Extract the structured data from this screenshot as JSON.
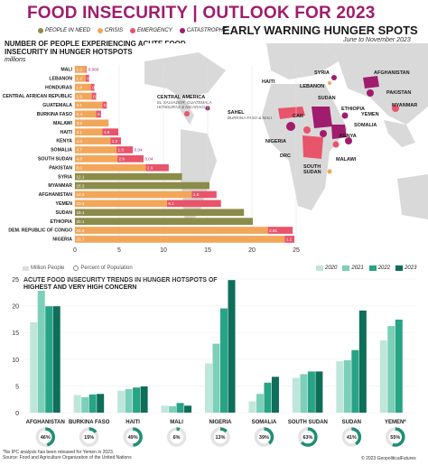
{
  "header": {
    "title": "FOOD INSECURITY | OUTLOOK FOR 2023",
    "subtitle": "EARLY WARNING HUNGER SPOTS",
    "dates": "June to November 2023"
  },
  "phase_legend": [
    {
      "label": "PEOPLE IN NEED",
      "color": "#8c8c4a"
    },
    {
      "label": "CRISIS",
      "color": "#f2a65a"
    },
    {
      "label": "EMERGENCY",
      "color": "#e8546a"
    },
    {
      "label": "CATASTROPHE",
      "color": "#a01c6e"
    }
  ],
  "map": {
    "labels": [
      {
        "name": "SYRIA",
        "sub": ""
      },
      {
        "name": "AFGHANISTAN",
        "sub": ""
      },
      {
        "name": "LEBANON",
        "sub": ""
      },
      {
        "name": "PAKISTAN",
        "sub": ""
      },
      {
        "name": "SUDAN",
        "sub": ""
      },
      {
        "name": "MYANMAR",
        "sub": ""
      },
      {
        "name": "HAITI",
        "sub": ""
      },
      {
        "name": "ETHIOPIA",
        "sub": ""
      },
      {
        "name": "YEMEN",
        "sub": ""
      },
      {
        "name": "CENTRAL AMERICA",
        "sub": "EL SALVADOR, GUATEMALA HONDURAS & NICARAGUA"
      },
      {
        "name": "SAHEL",
        "sub": "BURKINA FASO & MALI"
      },
      {
        "name": "CAR",
        "sub": ""
      },
      {
        "name": "KENYA",
        "sub": ""
      },
      {
        "name": "SOMALIA",
        "sub": ""
      },
      {
        "name": "NIGERIA",
        "sub": ""
      },
      {
        "name": "DRC",
        "sub": ""
      },
      {
        "name": "MALAWI",
        "sub": ""
      },
      {
        "name": "SOUTH SUDAN",
        "sub": ""
      }
    ]
  },
  "bar_section": {
    "title": "NUMBER OF PEOPLE EXPERIENCING ACUTE FOOD INSECURITY IN HUNGER HOTSPOTS",
    "unit": "millions"
  },
  "bottom_legend": {
    "million_people": "Million People",
    "percent_population": "Percent of Population"
  },
  "trend_section": {
    "title": "ACUTE FOOD INSECURITY TRENDS IN HUNGER HOTSPOTS OF HIGHEST AND VERY HIGH CONCERN"
  },
  "footer": {
    "note": "*No IPC analysis has been released for Yemen in 2023.",
    "source": "Source: Food and Agriculture Organization of the United Nations",
    "copyright": "© 2023 GeopoliticalFutures"
  },
  "chart_data": [
    {
      "type": "bar",
      "orientation": "horizontal",
      "stacked": true,
      "title": "NUMBER OF PEOPLE EXPERIENCING ACUTE FOOD INSECURITY IN HUNGER HOTSPOTS",
      "unit": "millions",
      "xlim": [
        0,
        25
      ],
      "xticks": [
        "0",
        "5",
        "10",
        "15",
        "20",
        "25"
      ],
      "categories": [
        "MALI",
        "LEBANON",
        "HONDURAS",
        "CENTRAL AFRICAN REPUBLIC",
        "GUATEMALA",
        "BURKINA FASO",
        "MALAWI",
        "HAITI",
        "KENYA",
        "SOMALIA",
        "SOUTH SUDAN",
        "PAKISTAN",
        "SYRIA",
        "MYANMAR",
        "AFGHANISTAN",
        "YEMEN",
        "SUDAN",
        "ETHIOPIA",
        "DEM. REPUBLIC OF CONGO",
        "NIGERIA"
      ],
      "series": [
        {
          "name": "PEOPLE IN NEED",
          "color": "#8c8c4a",
          "values": [
            0,
            0,
            0,
            0,
            0,
            0,
            0,
            0,
            0,
            0,
            0,
            0,
            12.1,
            15.2,
            0,
            0,
            19.1,
            20.1,
            0,
            0
          ],
          "labels": [
            "",
            "",
            "",
            "",
            "",
            "",
            "",
            "",
            "",
            "",
            "",
            "",
            "12.1",
            "15.2",
            "",
            "",
            "19.1",
            "20.1",
            "",
            ""
          ]
        },
        {
          "name": "CRISIS",
          "color": "#f2a65a",
          "values": [
            1.2,
            1.2,
            1.8,
            1.9,
            3.1,
            2.4,
            3.8,
            3.1,
            4.0,
            4.7,
            4.8,
            8.0,
            0,
            0,
            13.2,
            10.4,
            0,
            0,
            21.8,
            23.7
          ],
          "labels": [
            "1.2",
            "1.2",
            "1.8",
            "1.9",
            "3.1",
            "2.4",
            "3.8",
            "3.1",
            "4.0",
            "4.7",
            "4.8",
            "8.0",
            "",
            "",
            "13.2",
            "10.4",
            "",
            "",
            "21.8",
            "23.7"
          ]
        },
        {
          "name": "EMERGENCY",
          "color": "#e8546a",
          "values": [
            0.1,
            0.4,
            0.4,
            0.5,
            0.5,
            0.5,
            0,
            1.8,
            1.2,
            1.8,
            2.9,
            2.6,
            0,
            0,
            2.8,
            6.1,
            0,
            0,
            2.81,
            1.1
          ],
          "labels": [
            "0.1",
            "0.4",
            "0.4",
            "0.5",
            "0.5",
            "0.5",
            "",
            "1.8",
            "1.2",
            "1.8",
            "2.9",
            "2.6",
            "",
            "",
            "2.8",
            "6.1",
            "",
            "",
            "2.81",
            "1.1"
          ]
        },
        {
          "name": "CATASTROPHE",
          "color": "#a01c6e",
          "values": [
            0.003,
            0,
            0,
            0,
            0,
            0.04,
            0,
            0,
            0,
            0.04,
            0.04,
            0,
            0,
            0,
            0,
            0,
            0,
            0,
            0,
            0
          ],
          "labels": [
            "0.003",
            "",
            "",
            "",
            "",
            "",
            "",
            "",
            "",
            "0.04",
            "0.04",
            "",
            "",
            "",
            "",
            "",
            "",
            "",
            "",
            ""
          ]
        }
      ]
    },
    {
      "type": "bar",
      "title": "ACUTE FOOD INSECURITY TRENDS IN HUNGER HOTSPOTS OF HIGHEST AND VERY HIGH CONCERN",
      "ylim": [
        0,
        25
      ],
      "yticks": [
        "0",
        "5",
        "10",
        "15",
        "20",
        "25"
      ],
      "categories": [
        "AFGHANISTAN",
        "BURKINA FASO",
        "HAITI",
        "MALI",
        "NIGERIA",
        "SOMALIA",
        "SOUTH SUDAN",
        "SUDAN",
        "YEMEN*"
      ],
      "percent_of_population": [
        "46%",
        "15%",
        "49%",
        "6%",
        "13%",
        "39%",
        "63%",
        "41%",
        "55%"
      ],
      "series": [
        {
          "name": "2020",
          "color": "#bfe6da",
          "values": [
            16.9,
            3.3,
            4.1,
            1.3,
            9.2,
            2.1,
            6.5,
            9.6,
            13.5
          ]
        },
        {
          "name": "2021",
          "color": "#7ccfb8",
          "values": [
            22.8,
            2.9,
            4.4,
            1.2,
            12.9,
            3.5,
            7.2,
            9.8,
            16.2
          ]
        },
        {
          "name": "2022",
          "color": "#27a385",
          "values": [
            19.9,
            3.4,
            4.7,
            1.8,
            19.5,
            5.6,
            7.7,
            11.7,
            17.4
          ]
        },
        {
          "name": "2023",
          "color": "#0e6e5a",
          "values": [
            19.9,
            3.5,
            4.9,
            1.3,
            24.8,
            6.7,
            7.7,
            19.1,
            0
          ]
        }
      ]
    }
  ]
}
